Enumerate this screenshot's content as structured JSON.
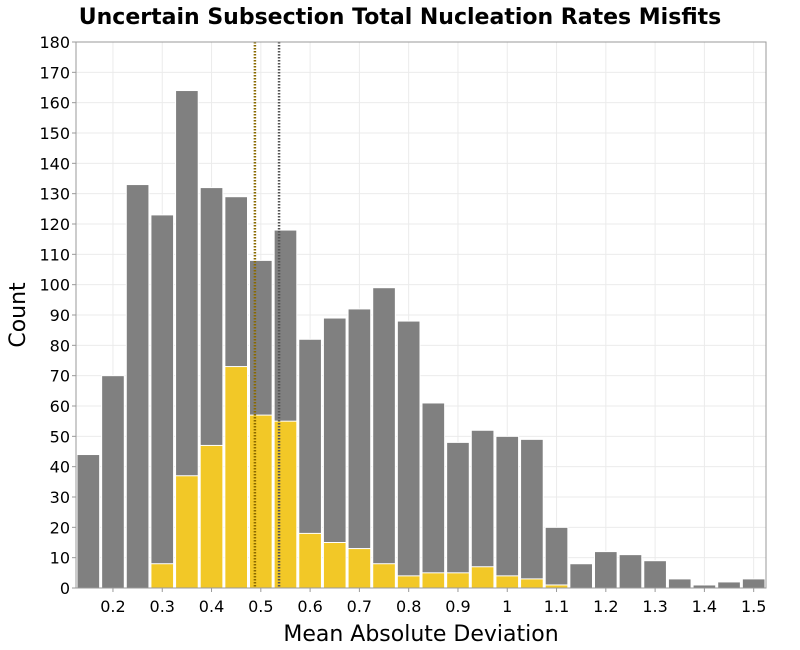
{
  "chart_data": {
    "type": "bar",
    "title": "Uncertain Subsection Total Nucleation Rates Misfits",
    "xlabel": "Mean Absolute Deviation",
    "ylabel": "Count",
    "xlim": [
      0.125,
      1.525
    ],
    "ylim": [
      0,
      180
    ],
    "x_ticks": [
      "0.2",
      "0.3",
      "0.4",
      "0.5",
      "0.6",
      "0.7",
      "0.8",
      "0.9",
      "1",
      "1.1",
      "1.2",
      "1.3",
      "1.4",
      "1.5"
    ],
    "y_ticks": [
      0,
      10,
      20,
      30,
      40,
      50,
      60,
      70,
      80,
      90,
      100,
      110,
      120,
      130,
      140,
      150,
      160,
      170,
      180
    ],
    "bin_width": 0.05,
    "bin_centers": [
      0.15,
      0.2,
      0.25,
      0.3,
      0.35,
      0.4,
      0.45,
      0.5,
      0.55,
      0.6,
      0.65,
      0.7,
      0.75,
      0.8,
      0.85,
      0.9,
      0.95,
      1.0,
      1.05,
      1.1,
      1.15,
      1.2,
      1.25,
      1.3,
      1.35,
      1.4,
      1.45,
      1.5
    ],
    "series": [
      {
        "color": "#808080",
        "values": [
          44,
          70,
          133,
          123,
          164,
          132,
          129,
          108,
          118,
          82,
          89,
          92,
          99,
          88,
          61,
          48,
          52,
          50,
          49,
          20,
          8,
          12,
          11,
          9,
          3,
          1,
          2,
          3
        ]
      },
      {
        "color": "#f2c827",
        "values": [
          0,
          0,
          0,
          8,
          37,
          47,
          73,
          57,
          55,
          18,
          15,
          13,
          8,
          4,
          5,
          5,
          7,
          4,
          3,
          1,
          0,
          0,
          0,
          0,
          0,
          0,
          0,
          0
        ]
      }
    ],
    "vlines": [
      {
        "x": 0.488,
        "color": "#8a6a00",
        "style": "dotted"
      },
      {
        "x": 0.537,
        "color": "#555555",
        "style": "dotted"
      }
    ],
    "grid": true,
    "legend": "none"
  }
}
